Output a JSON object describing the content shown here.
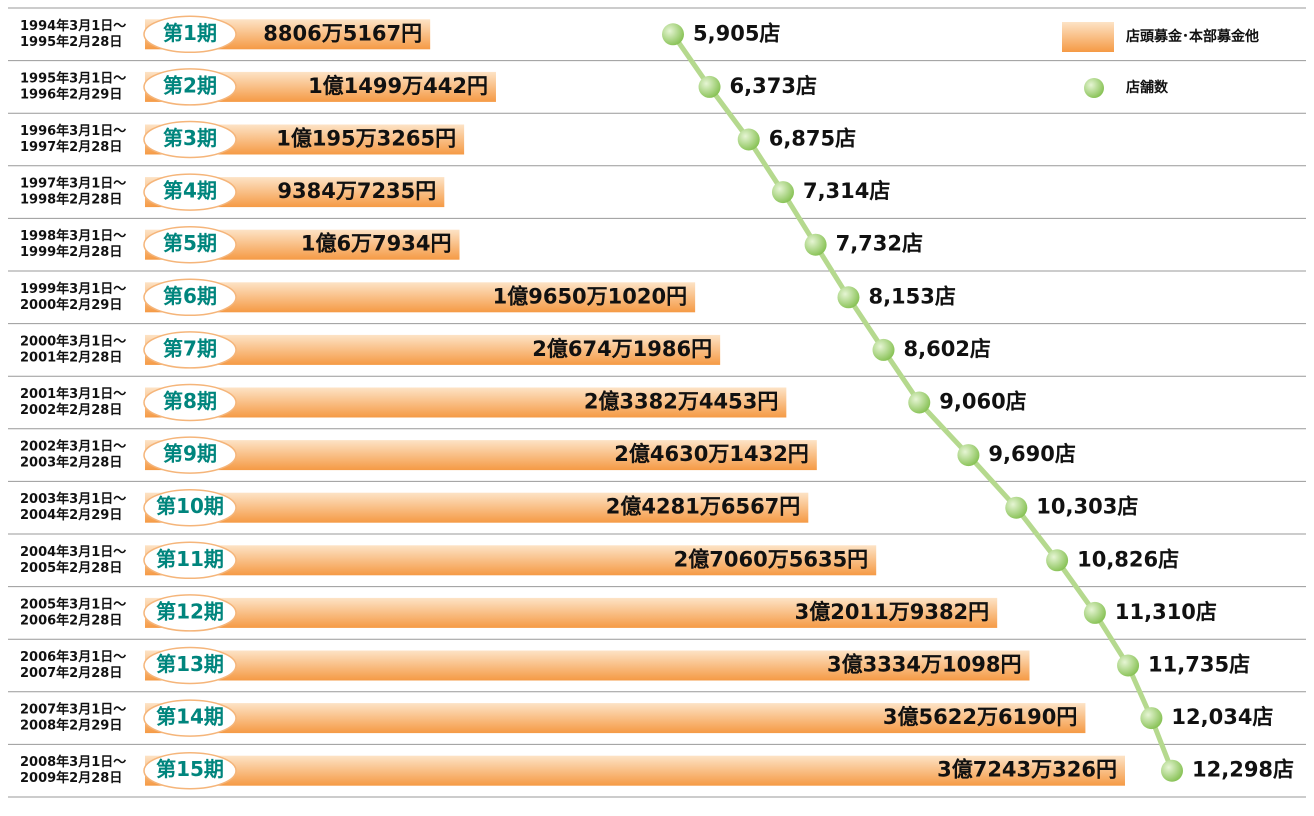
{
  "chart_data": {
    "type": "bar-line",
    "categories": [
      "第1期",
      "第2期",
      "第3期",
      "第4期",
      "第5期",
      "第6期",
      "第7期",
      "第8期",
      "第9期",
      "第10期",
      "第11期",
      "第12期",
      "第13期",
      "第14期",
      "第15期"
    ],
    "periods": [
      [
        "1994年3月1日～",
        "1995年2月28日"
      ],
      [
        "1995年3月1日～",
        "1996年2月29日"
      ],
      [
        "1996年3月1日～",
        "1997年2月28日"
      ],
      [
        "1997年3月1日～",
        "1998年2月28日"
      ],
      [
        "1998年3月1日～",
        "1999年2月28日"
      ],
      [
        "1999年3月1日～",
        "2000年2月29日"
      ],
      [
        "2000年3月1日～",
        "2001年2月28日"
      ],
      [
        "2001年3月1日～",
        "2002年2月28日"
      ],
      [
        "2002年3月1日～",
        "2003年2月28日"
      ],
      [
        "2003年3月1日～",
        "2004年2月29日"
      ],
      [
        "2004年3月1日～",
        "2005年2月28日"
      ],
      [
        "2005年3月1日～",
        "2006年2月28日"
      ],
      [
        "2006年3月1日～",
        "2007年2月28日"
      ],
      [
        "2007年3月1日～",
        "2008年2月29日"
      ],
      [
        "2008年3月1日～",
        "2009年2月28日"
      ]
    ],
    "series": [
      {
        "name": "店頭募金･本部募金他",
        "type": "bar",
        "color": "#f59a45",
        "values": [
          88065167,
          114990442,
          101953265,
          93847235,
          100067934,
          196501020,
          206741986,
          233824453,
          246301432,
          242816567,
          270605635,
          320119382,
          333341098,
          356226190,
          372430326
        ],
        "value_labels": [
          "8806万5167円",
          "1億1499万442円",
          "1億195万3265円",
          "9384万7235円",
          "1億6万7934円",
          "1億9650万1020円",
          "2億674万1986円",
          "2億3382万4453円",
          "2億4630万1432円",
          "2億4281万6567円",
          "2億7060万5635円",
          "3億2011万9382円",
          "3億3334万1098円",
          "3億5622万6190円",
          "3億7243万326円"
        ]
      },
      {
        "name": "店舗数",
        "type": "line",
        "color": "#9ccf68",
        "values": [
          5905,
          6373,
          6875,
          7314,
          7732,
          8153,
          8602,
          9060,
          9690,
          10303,
          10826,
          11310,
          11735,
          12034,
          12298
        ],
        "value_labels": [
          "5,905店",
          "6,373店",
          "6,875店",
          "7,314店",
          "7,732店",
          "8,153店",
          "8,602店",
          "9,060店",
          "9,690店",
          "10,303店",
          "10,826店",
          "11,310店",
          "11,735店",
          "12,034店",
          "12,298店"
        ]
      }
    ]
  }
}
